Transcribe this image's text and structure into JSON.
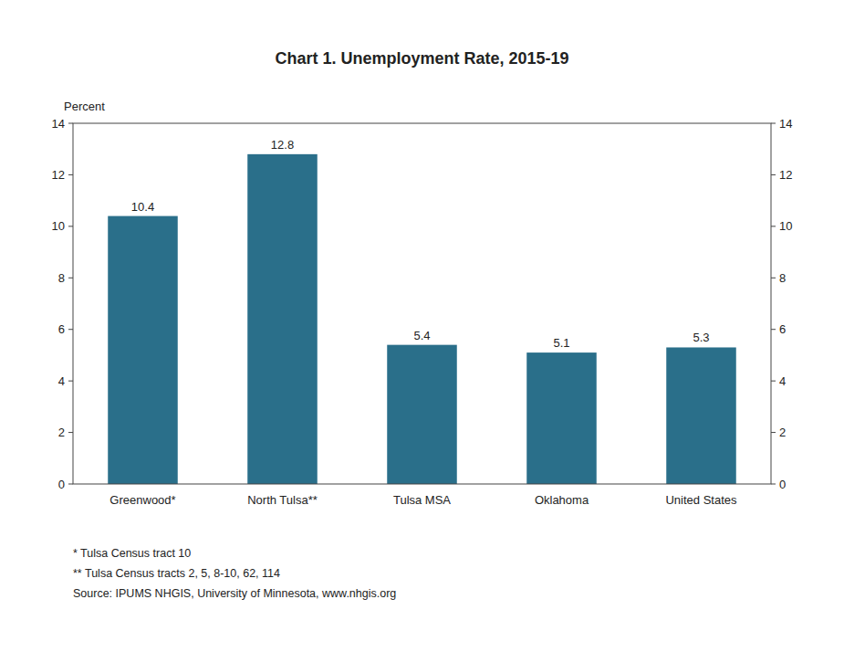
{
  "chart_data": {
    "type": "bar",
    "title": "Chart 1. Unemployment Rate, 2015-19",
    "ylabel": "Percent",
    "categories": [
      "Greenwood*",
      "North Tulsa**",
      "Tulsa MSA",
      "Oklahoma",
      "United States"
    ],
    "values": [
      10.4,
      12.8,
      5.4,
      5.1,
      5.3
    ],
    "color": "#2a6f8a",
    "ylim": [
      0,
      14
    ],
    "yticks": [
      0,
      2,
      4,
      6,
      8,
      10,
      12,
      14
    ],
    "y2lim": [
      0,
      14
    ],
    "y2ticks": [
      0,
      2,
      4,
      6,
      8,
      10,
      12,
      14
    ],
    "grid": false,
    "data_labels": true,
    "annotations": [
      "* Tulsa Census tract 10",
      "** Tulsa Census tracts 2, 5, 8-10, 62, 114",
      "Source: IPUMS NHGIS, University of Minnesota, www.nhgis.org"
    ]
  }
}
